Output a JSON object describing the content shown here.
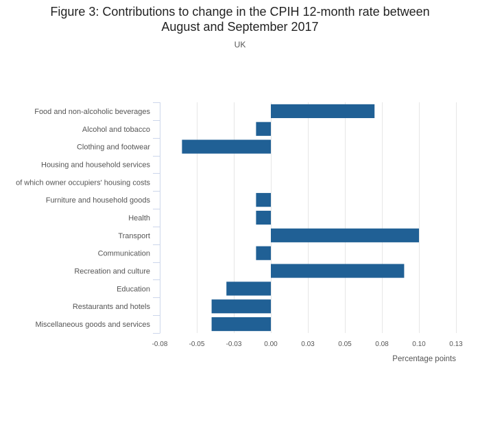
{
  "chart_data": {
    "type": "bar",
    "orientation": "horizontal",
    "title_lines": [
      "Figure 3: Contributions to change in the CPIH 12-month rate between",
      "August and September 2017"
    ],
    "subtitle": "UK",
    "xlabel": "Percentage points",
    "ylabel": "",
    "xlim": [
      -0.075,
      0.125
    ],
    "x_ticks": [
      -0.075,
      -0.05,
      -0.025,
      0,
      0.025,
      0.05,
      0.075,
      0.1,
      0.125
    ],
    "x_tick_labels": [
      "-0.08",
      "-0.05",
      "-0.03",
      "0.00",
      "0.03",
      "0.05",
      "0.08",
      "0.10",
      "0.13"
    ],
    "categories": [
      "Food and non-alcoholic beverages",
      "Alcohol and tobacco",
      "Clothing and footwear",
      "Housing and household services",
      "of which owner occupiers' housing costs",
      "Furniture and household goods",
      "Health",
      "Transport",
      "Communication",
      "Recreation and culture",
      "Education",
      "Restaurants and hotels",
      "Miscellaneous goods and services"
    ],
    "values": [
      0.07,
      -0.01,
      -0.06,
      0,
      0,
      -0.01,
      -0.01,
      0.1,
      -0.01,
      0.09,
      -0.03,
      -0.04,
      -0.04
    ],
    "bar_color": "#206095",
    "grid": true
  }
}
